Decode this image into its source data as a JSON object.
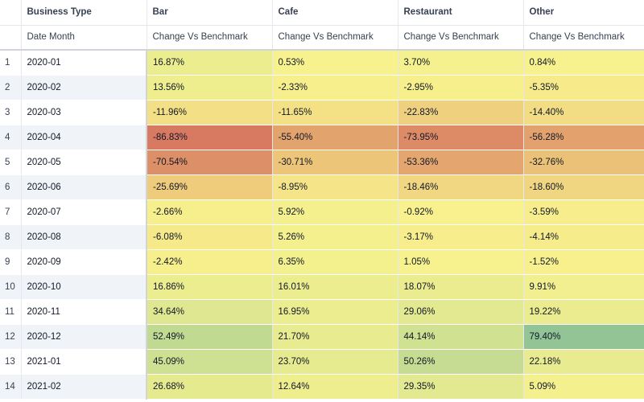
{
  "header": {
    "group_label": "Business Type",
    "row_label": "Date Month",
    "columns": [
      {
        "name": "Bar",
        "measure": "Change Vs Benchmark"
      },
      {
        "name": "Cafe",
        "measure": "Change Vs Benchmark"
      },
      {
        "name": "Restaurant",
        "measure": "Change Vs Benchmark"
      },
      {
        "name": "Other",
        "measure": "Change Vs Benchmark"
      }
    ]
  },
  "rows": [
    {
      "index": "1",
      "date": "2020-01",
      "values": [
        "16.87%",
        "0.53%",
        "3.70%",
        "0.84%"
      ]
    },
    {
      "index": "2",
      "date": "2020-02",
      "values": [
        "13.56%",
        "-2.33%",
        "-2.95%",
        "-5.35%"
      ]
    },
    {
      "index": "3",
      "date": "2020-03",
      "values": [
        "-11.96%",
        "-11.65%",
        "-22.83%",
        "-14.40%"
      ]
    },
    {
      "index": "4",
      "date": "2020-04",
      "values": [
        "-86.83%",
        "-55.40%",
        "-73.95%",
        "-56.28%"
      ]
    },
    {
      "index": "5",
      "date": "2020-05",
      "values": [
        "-70.54%",
        "-30.71%",
        "-53.36%",
        "-32.76%"
      ]
    },
    {
      "index": "6",
      "date": "2020-06",
      "values": [
        "-25.69%",
        "-8.95%",
        "-18.46%",
        "-18.60%"
      ]
    },
    {
      "index": "7",
      "date": "2020-07",
      "values": [
        "-2.66%",
        "5.92%",
        "-0.92%",
        "-3.59%"
      ]
    },
    {
      "index": "8",
      "date": "2020-08",
      "values": [
        "-6.08%",
        "5.26%",
        "-3.17%",
        "-4.14%"
      ]
    },
    {
      "index": "9",
      "date": "2020-09",
      "values": [
        "-2.42%",
        "6.35%",
        "1.05%",
        "-1.52%"
      ]
    },
    {
      "index": "10",
      "date": "2020-10",
      "values": [
        "16.86%",
        "16.01%",
        "18.07%",
        "9.91%"
      ]
    },
    {
      "index": "11",
      "date": "2020-11",
      "values": [
        "34.64%",
        "16.95%",
        "29.06%",
        "19.22%"
      ]
    },
    {
      "index": "12",
      "date": "2020-12",
      "values": [
        "52.49%",
        "21.70%",
        "44.14%",
        "79.40%"
      ]
    },
    {
      "index": "13",
      "date": "2021-01",
      "values": [
        "45.09%",
        "23.70%",
        "50.26%",
        "22.18%"
      ]
    },
    {
      "index": "14",
      "date": "2021-02",
      "values": [
        "26.68%",
        "12.64%",
        "29.35%",
        "5.09%"
      ]
    }
  ]
}
